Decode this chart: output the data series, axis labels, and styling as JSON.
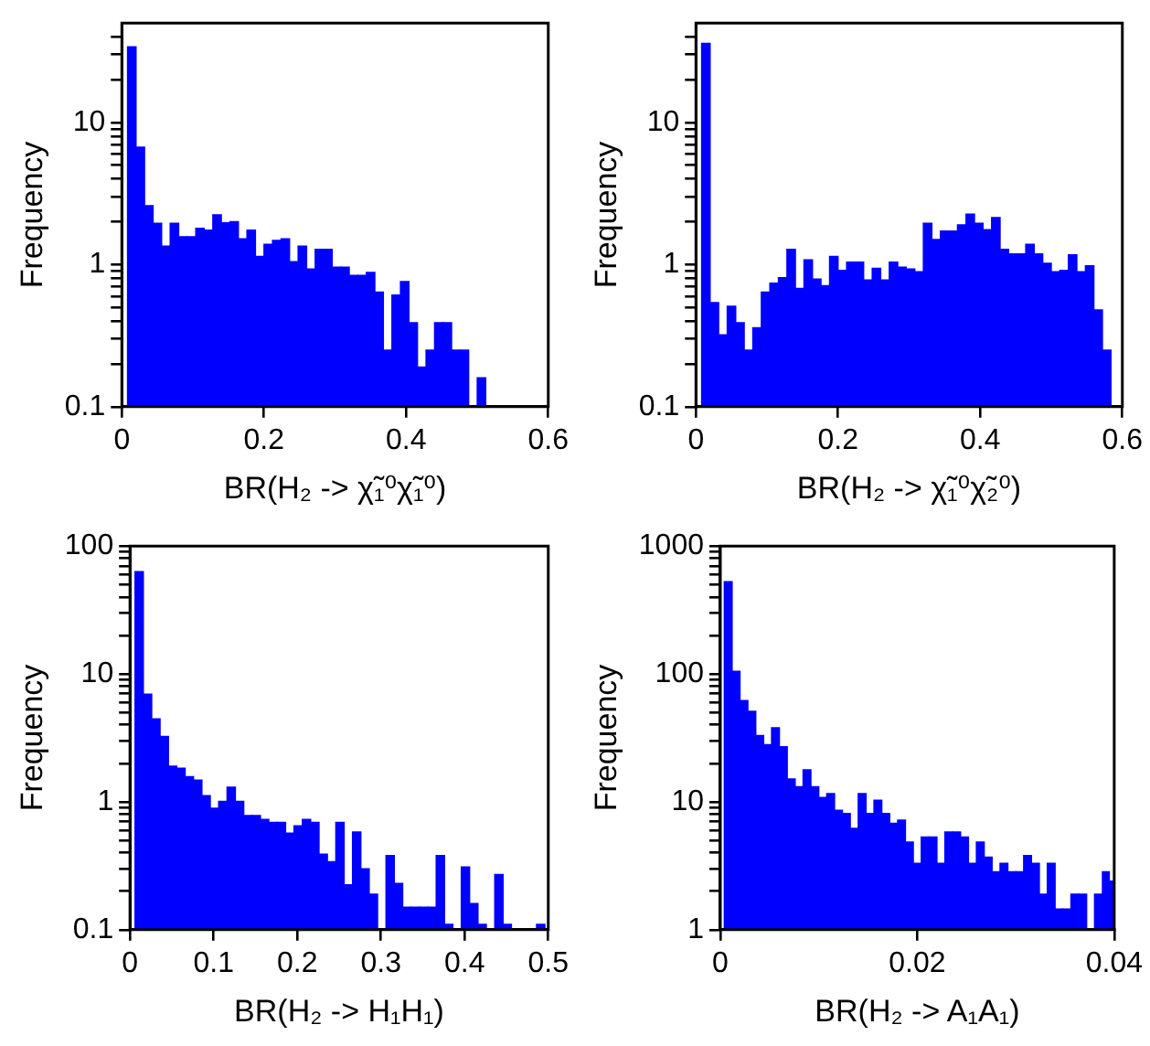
{
  "chart_data": [
    {
      "type": "histogram",
      "xlabel": "BR(H₂ -> χ̃₁⁰χ̃₁⁰)",
      "ylabel": "Frequency",
      "log": "y",
      "color": "#0000ff",
      "bins": [
        0.008,
        0.02,
        0.032,
        0.044,
        0.056,
        0.068,
        0.08,
        0.092,
        0.104,
        0.116,
        0.128,
        0.14,
        0.152,
        0.164,
        0.176,
        0.188,
        0.2,
        0.212,
        0.224,
        0.236,
        0.248,
        0.26,
        0.272,
        0.284,
        0.296,
        0.308,
        0.32,
        0.332,
        0.344,
        0.356,
        0.368,
        0.38,
        0.392,
        0.404,
        0.416,
        0.428,
        0.44,
        0.452,
        0.464,
        0.476,
        0.488,
        0.5,
        0.512
      ],
      "values": [
        34,
        6.7,
        2.6,
        1.95,
        1.35,
        1.95,
        1.57,
        1.57,
        1.8,
        1.75,
        2.24,
        1.97,
        2.0,
        1.52,
        1.75,
        1.14,
        1.39,
        1.48,
        1.52,
        1.05,
        1.35,
        0.93,
        1.28,
        1.28,
        0.96,
        0.96,
        0.84,
        0.84,
        0.88,
        0.64,
        0.25,
        0.61,
        0.76,
        0.39,
        0.19,
        0.25,
        0.39,
        0.39,
        0.25,
        0.25,
        null,
        0.16
      ],
      "xlim": [
        0,
        0.6
      ],
      "xticks": [
        0,
        0.2,
        0.4,
        0.6
      ],
      "ylim": [
        0.1,
        50
      ],
      "yticks": [
        0.1,
        {
          "value": 0.2,
          "label": null
        },
        {
          "value": 0.3,
          "label": null
        },
        {
          "value": 0.4,
          "label": null
        },
        {
          "value": 0.5,
          "label": null
        },
        {
          "value": 0.6,
          "label": null
        },
        {
          "value": 0.7,
          "label": null
        },
        {
          "value": 0.8,
          "label": null
        },
        {
          "value": 0.9,
          "label": null
        },
        1,
        {
          "value": 2,
          "label": null
        },
        {
          "value": 3,
          "label": null
        },
        {
          "value": 4,
          "label": null
        },
        {
          "value": 5,
          "label": null
        },
        {
          "value": 6,
          "label": null
        },
        {
          "value": 7,
          "label": null
        },
        {
          "value": 8,
          "label": null
        },
        {
          "value": 9,
          "label": null
        },
        10,
        {
          "value": 20,
          "label": null
        },
        {
          "value": 30,
          "label": null
        },
        {
          "value": 40,
          "label": null
        }
      ]
    },
    {
      "type": "histogram",
      "xlabel": "BR(H₂ -> χ̃₁⁰χ̃₂⁰)",
      "ylabel": "Frequency",
      "log": "y",
      "color": "#0000ff",
      "bins": [
        0.008,
        0.02,
        0.032,
        0.044,
        0.056,
        0.068,
        0.08,
        0.092,
        0.104,
        0.116,
        0.128,
        0.14,
        0.152,
        0.164,
        0.176,
        0.188,
        0.2,
        0.212,
        0.224,
        0.236,
        0.248,
        0.26,
        0.272,
        0.284,
        0.296,
        0.308,
        0.32,
        0.332,
        0.344,
        0.356,
        0.368,
        0.38,
        0.392,
        0.404,
        0.416,
        0.428,
        0.44,
        0.452,
        0.464,
        0.476,
        0.488,
        0.5,
        0.512,
        0.524,
        0.536,
        0.548,
        0.56,
        0.572,
        0.584
      ],
      "values": [
        36,
        0.54,
        0.32,
        0.51,
        0.39,
        0.25,
        0.36,
        0.64,
        0.74,
        0.81,
        1.28,
        0.68,
        1.08,
        0.79,
        0.71,
        1.14,
        0.91,
        1.04,
        1.04,
        0.78,
        0.94,
        0.78,
        1.04,
        0.96,
        0.93,
        0.89,
        1.95,
        1.5,
        1.72,
        1.72,
        1.9,
        2.26,
        1.95,
        1.76,
        2.14,
        1.28,
        1.19,
        1.19,
        1.39,
        1.19,
        1.02,
        0.89,
        0.91,
        1.17,
        0.89,
        0.98,
        0.48,
        0.25
      ],
      "xlim": [
        0,
        0.6
      ],
      "xticks": [
        0,
        0.2,
        0.4,
        0.6
      ],
      "ylim": [
        0.1,
        50
      ],
      "yticks": [
        0.1,
        {
          "value": 0.2,
          "label": null
        },
        {
          "value": 0.3,
          "label": null
        },
        {
          "value": 0.4,
          "label": null
        },
        {
          "value": 0.5,
          "label": null
        },
        {
          "value": 0.6,
          "label": null
        },
        {
          "value": 0.7,
          "label": null
        },
        {
          "value": 0.8,
          "label": null
        },
        {
          "value": 0.9,
          "label": null
        },
        1,
        {
          "value": 2,
          "label": null
        },
        {
          "value": 3,
          "label": null
        },
        {
          "value": 4,
          "label": null
        },
        {
          "value": 5,
          "label": null
        },
        {
          "value": 6,
          "label": null
        },
        {
          "value": 7,
          "label": null
        },
        {
          "value": 8,
          "label": null
        },
        {
          "value": 9,
          "label": null
        },
        10,
        {
          "value": 20,
          "label": null
        },
        {
          "value": 30,
          "label": null
        },
        {
          "value": 40,
          "label": null
        }
      ]
    },
    {
      "type": "histogram",
      "xlabel": "BR(H₂ -> H₁H₁)",
      "ylabel": "Frequency",
      "log": "y",
      "color": "#0000ff",
      "bins": [
        0.006,
        0.016,
        0.026,
        0.036,
        0.046,
        0.056,
        0.066,
        0.076,
        0.086,
        0.096,
        0.106,
        0.116,
        0.126,
        0.136,
        0.146,
        0.156,
        0.166,
        0.176,
        0.186,
        0.196,
        0.206,
        0.216,
        0.226,
        0.236,
        0.246,
        0.256,
        0.266,
        0.276,
        0.286,
        0.296,
        0.306,
        0.316,
        0.326,
        0.336,
        0.346,
        0.356,
        0.366,
        0.376,
        0.386,
        0.396,
        0.406,
        0.416,
        0.426,
        0.436,
        0.446,
        0.456,
        0.466,
        0.476,
        0.486,
        0.496
      ],
      "values": [
        63,
        6.95,
        4.46,
        3.25,
        1.9,
        1.83,
        1.57,
        1.48,
        1.12,
        0.89,
        1.01,
        1.3,
        1.01,
        0.78,
        0.78,
        0.73,
        0.69,
        0.69,
        0.57,
        0.65,
        0.73,
        0.69,
        0.39,
        0.34,
        0.69,
        0.225,
        0.58,
        0.3,
        0.19,
        null,
        0.38,
        0.23,
        0.15,
        0.15,
        0.15,
        0.15,
        0.38,
        0.11,
        null,
        0.31,
        0.16,
        0.11,
        null,
        0.27,
        0.11,
        null,
        null,
        null,
        0.11
      ],
      "xlim": [
        0,
        0.5
      ],
      "xticks": [
        0,
        0.1,
        0.2,
        0.3,
        0.4,
        0.5
      ],
      "ylim": [
        0.1,
        100
      ],
      "yticks": [
        0.1,
        {
          "value": 0.2,
          "label": null
        },
        {
          "value": 0.3,
          "label": null
        },
        {
          "value": 0.4,
          "label": null
        },
        {
          "value": 0.5,
          "label": null
        },
        {
          "value": 0.6,
          "label": null
        },
        {
          "value": 0.7,
          "label": null
        },
        {
          "value": 0.8,
          "label": null
        },
        {
          "value": 0.9,
          "label": null
        },
        1,
        {
          "value": 2,
          "label": null
        },
        {
          "value": 3,
          "label": null
        },
        {
          "value": 4,
          "label": null
        },
        {
          "value": 5,
          "label": null
        },
        {
          "value": 6,
          "label": null
        },
        {
          "value": 7,
          "label": null
        },
        {
          "value": 8,
          "label": null
        },
        {
          "value": 9,
          "label": null
        },
        10,
        {
          "value": 20,
          "label": null
        },
        {
          "value": 30,
          "label": null
        },
        {
          "value": 40,
          "label": null
        },
        {
          "value": 50,
          "label": null
        },
        {
          "value": 60,
          "label": null
        },
        {
          "value": 70,
          "label": null
        },
        {
          "value": 80,
          "label": null
        },
        {
          "value": 90,
          "label": null
        },
        100
      ]
    },
    {
      "type": "histogram",
      "xlabel": "BR(H₂ -> A₁A₁)",
      "ylabel": "Frequency",
      "log": "y",
      "color": "#0000ff",
      "bins": [
        0.0004,
        0.0012,
        0.002,
        0.0028,
        0.0036,
        0.0044,
        0.0052,
        0.006,
        0.0068,
        0.0076,
        0.0084,
        0.0092,
        0.01,
        0.0108,
        0.0116,
        0.0124,
        0.0132,
        0.014,
        0.0148,
        0.0156,
        0.0164,
        0.0172,
        0.018,
        0.0188,
        0.0196,
        0.0204,
        0.0212,
        0.022,
        0.0228,
        0.0236,
        0.0244,
        0.0252,
        0.026,
        0.0268,
        0.0276,
        0.0284,
        0.0292,
        0.03,
        0.0308,
        0.0316,
        0.0324,
        0.0332,
        0.034,
        0.0348,
        0.0356,
        0.0364,
        0.0372,
        0.038,
        0.0388,
        0.0396,
        0.04
      ],
      "values": [
        526,
        105,
        62,
        51,
        33,
        28,
        38,
        27,
        15.1,
        13.1,
        17.8,
        13.1,
        10.8,
        11.6,
        8.6,
        8.1,
        6.2,
        11.6,
        8.1,
        10.3,
        8.1,
        6.8,
        7.2,
        4.85,
        3.3,
        5.3,
        5.3,
        3.3,
        5.8,
        5.8,
        5.3,
        3.3,
        4.85,
        3.7,
        2.84,
        3.3,
        2.84,
        2.84,
        3.8,
        3.3,
        1.9,
        3.3,
        1.45,
        1.45,
        1.9,
        1.9,
        null,
        1.9,
        2.84,
        2.4
      ],
      "xlim": [
        0,
        0.04
      ],
      "xticks": [
        0,
        0.02,
        0.04
      ],
      "ylim": [
        1,
        1000
      ],
      "yticks": [
        1,
        {
          "value": 2,
          "label": null
        },
        {
          "value": 3,
          "label": null
        },
        {
          "value": 4,
          "label": null
        },
        {
          "value": 5,
          "label": null
        },
        {
          "value": 6,
          "label": null
        },
        {
          "value": 7,
          "label": null
        },
        {
          "value": 8,
          "label": null
        },
        {
          "value": 9,
          "label": null
        },
        10,
        {
          "value": 20,
          "label": null
        },
        {
          "value": 30,
          "label": null
        },
        {
          "value": 40,
          "label": null
        },
        {
          "value": 50,
          "label": null
        },
        {
          "value": 60,
          "label": null
        },
        {
          "value": 70,
          "label": null
        },
        {
          "value": 80,
          "label": null
        },
        {
          "value": 90,
          "label": null
        },
        100,
        {
          "value": 200,
          "label": null
        },
        {
          "value": 300,
          "label": null
        },
        {
          "value": 400,
          "label": null
        },
        {
          "value": 500,
          "label": null
        },
        {
          "value": 600,
          "label": null
        },
        {
          "value": 700,
          "label": null
        },
        {
          "value": 800,
          "label": null
        },
        {
          "value": 900,
          "label": null
        },
        1000
      ]
    }
  ]
}
